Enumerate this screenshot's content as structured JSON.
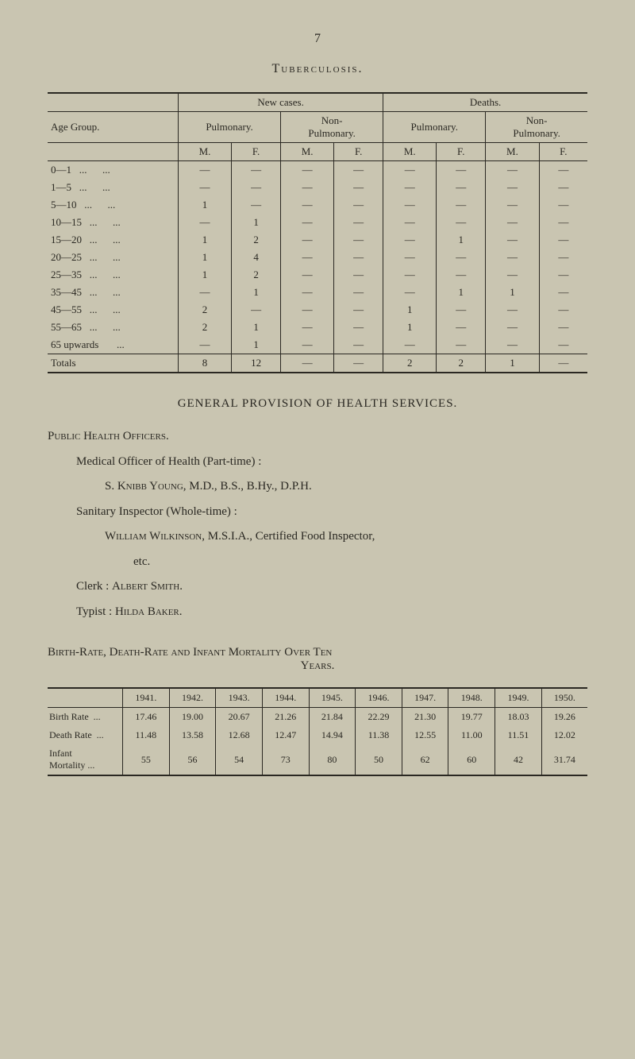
{
  "page_number": "7",
  "main_title": "Tuberculosis.",
  "table1": {
    "group_header": "Age Group.",
    "new_cases": "New cases.",
    "deaths": "Deaths.",
    "pulmonary": "Pulmonary.",
    "non_pulmonary": "Non-\nPulmonary.",
    "m": "M.",
    "f": "F.",
    "rows": [
      {
        "label": "0—1",
        "v": [
          "—",
          "—",
          "—",
          "—",
          "—",
          "—",
          "—",
          "—"
        ]
      },
      {
        "label": "1—5",
        "v": [
          "—",
          "—",
          "—",
          "—",
          "—",
          "—",
          "—",
          "—"
        ]
      },
      {
        "label": "5—10",
        "v": [
          "1",
          "—",
          "—",
          "—",
          "—",
          "—",
          "—",
          "—"
        ]
      },
      {
        "label": "10—15",
        "v": [
          "—",
          "1",
          "—",
          "—",
          "—",
          "—",
          "—",
          "—"
        ]
      },
      {
        "label": "15—20",
        "v": [
          "1",
          "2",
          "—",
          "—",
          "—",
          "1",
          "—",
          "—"
        ]
      },
      {
        "label": "20—25",
        "v": [
          "1",
          "4",
          "—",
          "—",
          "—",
          "—",
          "—",
          "—"
        ]
      },
      {
        "label": "25—35",
        "v": [
          "1",
          "2",
          "—",
          "—",
          "—",
          "—",
          "—",
          "—"
        ]
      },
      {
        "label": "35—45",
        "v": [
          "—",
          "1",
          "—",
          "—",
          "—",
          "1",
          "1",
          "—"
        ]
      },
      {
        "label": "45—55",
        "v": [
          "2",
          "—",
          "—",
          "—",
          "1",
          "—",
          "—",
          "—"
        ]
      },
      {
        "label": "55—65",
        "v": [
          "2",
          "1",
          "—",
          "—",
          "1",
          "—",
          "—",
          "—"
        ]
      },
      {
        "label": "65 upwards",
        "v": [
          "—",
          "1",
          "—",
          "—",
          "—",
          "—",
          "—",
          "—"
        ]
      }
    ],
    "totals_label": "Totals",
    "totals": [
      "8",
      "12",
      "—",
      "—",
      "2",
      "2",
      "1",
      "—"
    ]
  },
  "section_heading": "GENERAL PROVISION OF HEALTH SERVICES.",
  "officers_heading": "Public Health Officers.",
  "line1": "Medical Officer of Health (Part-time) :",
  "line2_pre": "S. ",
  "line2_name": "Knibb Young",
  "line2_post": ", M.D., B.S., B.Hy., D.P.H.",
  "line3": "Sanitary Inspector (Whole-time) :",
  "line4_name": "William Wilkinson",
  "line4_post": ", M.S.I.A., Certified Food Inspector,",
  "line4b": "etc.",
  "line5_pre": "Clerk : ",
  "line5_name": "Albert Smith.",
  "line6_pre": "Typist : ",
  "line6_name": "Hilda Baker.",
  "rates_heading_a": "Birth-Rate, Death-Rate and Infant Mortality Over Ten",
  "rates_heading_b": "Years.",
  "rates": {
    "years": [
      "1941.",
      "1942.",
      "1943.",
      "1944.",
      "1945.",
      "1946.",
      "1947.",
      "1948.",
      "1949.",
      "1950."
    ],
    "rows": [
      {
        "label": "Birth Rate",
        "v": [
          "17.46",
          "19.00",
          "20.67",
          "21.26",
          "21.84",
          "22.29",
          "21.30",
          "19.77",
          "18.03",
          "19.26"
        ]
      },
      {
        "label": "Death Rate",
        "v": [
          "11.48",
          "13.58",
          "12.68",
          "12.47",
          "14.94",
          "11.38",
          "12.55",
          "11.00",
          "11.51",
          "12.02"
        ]
      },
      {
        "label": "Infant\nMortality",
        "v": [
          "55",
          "56",
          "54",
          "73",
          "80",
          "50",
          "62",
          "60",
          "42",
          "31.74"
        ]
      }
    ]
  }
}
